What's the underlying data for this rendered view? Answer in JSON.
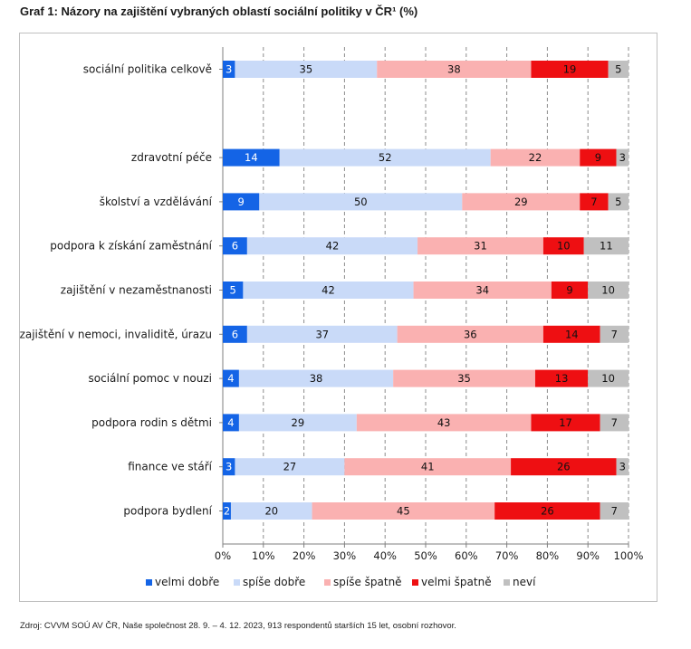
{
  "title": "Graf 1: Názory na zajištění vybraných oblastí sociální politiky v ČR¹ (%)",
  "source": "Zdroj: CVVM SOÚ AV ČR, Naše společnost 28. 9. – 4. 12. 2023, 913 respondentů starších 15 let, osobní rozhovor.",
  "chart_data": {
    "type": "bar",
    "orientation": "horizontal",
    "stacked": "percent",
    "title": "Graf 1: Názory na zajištění vybraných oblastí sociální politiky v ČR¹ (%)",
    "categories": [
      "sociální politika celkově",
      "",
      "zdravotní péče",
      "školství a vzdělávání",
      "podpora k získání zaměstnání",
      "zajištění v nezaměstnanosti",
      "zajištění v nemoci, invaliditě, úrazu",
      "sociální pomoc v nouzi",
      "podpora rodin s dětmi",
      "finance ve stáří",
      "podpora bydlení"
    ],
    "series": [
      {
        "name": "velmi dobře",
        "color": "#1464e6",
        "values": [
          3,
          null,
          14,
          9,
          6,
          5,
          6,
          4,
          4,
          3,
          2
        ]
      },
      {
        "name": "spíše dobře",
        "color": "#c9daf8",
        "values": [
          35,
          null,
          52,
          50,
          42,
          42,
          37,
          38,
          29,
          27,
          20
        ]
      },
      {
        "name": "spíše špatně",
        "color": "#fab1b1",
        "values": [
          38,
          null,
          22,
          29,
          31,
          34,
          36,
          35,
          43,
          41,
          45
        ]
      },
      {
        "name": "velmi špatně",
        "color": "#ee0f12",
        "values": [
          19,
          null,
          9,
          7,
          10,
          9,
          14,
          13,
          17,
          26,
          26
        ]
      },
      {
        "name": "neví",
        "color": "#c0c0c0",
        "values": [
          5,
          null,
          3,
          5,
          11,
          10,
          7,
          10,
          7,
          3,
          7
        ]
      }
    ],
    "xlim": [
      0,
      100
    ],
    "x_ticks": [
      "0%",
      "10%",
      "20%",
      "30%",
      "40%",
      "50%",
      "60%",
      "70%",
      "80%",
      "90%",
      "100%"
    ],
    "grid": "vertical dashed",
    "legend_position": "bottom"
  }
}
